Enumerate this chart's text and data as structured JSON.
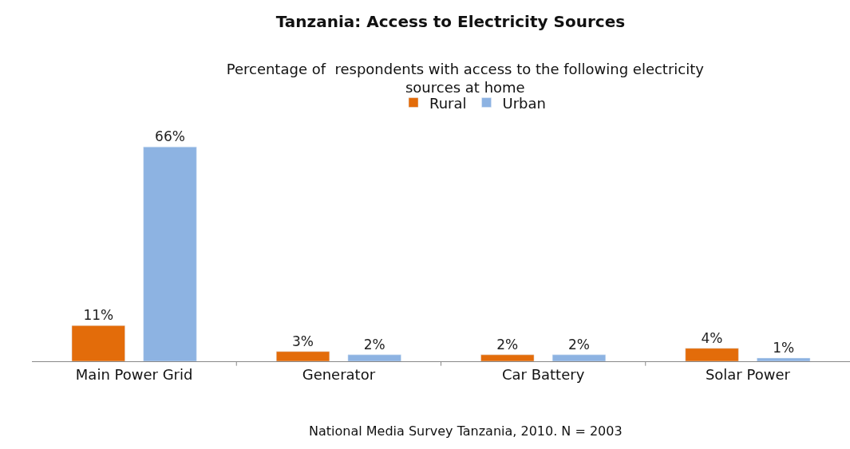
{
  "chart_data": {
    "type": "bar",
    "title": "Tanzania: Access to Electricity Sources",
    "subtitle": "Percentage of  respondents with access to the following electricity sources at home",
    "categories": [
      "Main Power Grid",
      "Generator",
      "Car Battery",
      "Solar Power"
    ],
    "series": [
      {
        "name": "Rural",
        "color": "#e36c0a",
        "values": [
          11,
          3,
          2,
          4
        ],
        "value_labels": [
          "11%",
          "3%",
          "2%",
          "4%"
        ]
      },
      {
        "name": "Urban",
        "color": "#8db3e2",
        "values": [
          66,
          2,
          2,
          1
        ],
        "value_labels": [
          "66%",
          "2%",
          "2%",
          "1%"
        ]
      }
    ],
    "legend": "top",
    "tick_labels": "x",
    "annotations": [
      "National Media Survey Tanzania, 2010. N = 2003"
    ]
  }
}
